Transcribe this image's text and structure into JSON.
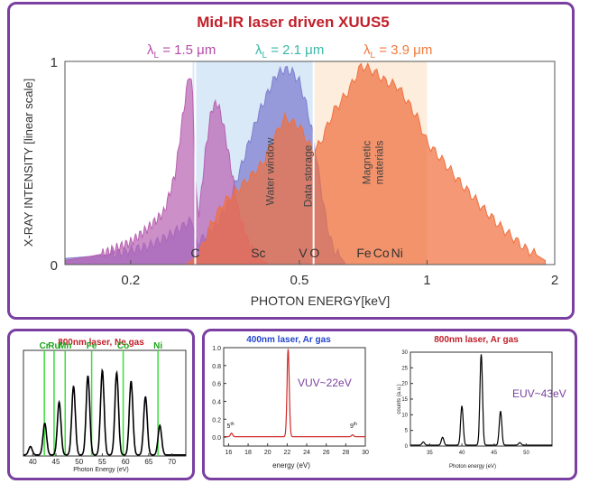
{
  "main": {
    "title": "Mid-IR laser driven XUUS5",
    "title_color": "#c0202a",
    "ylabel": "X-RAY INTENSITY [linear scale]",
    "xlabel": "PHOTON ENERGY[keV]",
    "legend": [
      {
        "prefix": "λ",
        "sub": "L",
        "text": " = 1.5 μm",
        "color": "#b44aa8"
      },
      {
        "prefix": "λ",
        "sub": "L",
        "text": " = 2.1 μm",
        "color": "#39b8a8"
      },
      {
        "prefix": "λ",
        "sub": "L",
        "text": " = 3.9 μm",
        "color": "#f07a3c"
      }
    ],
    "region_labels": [
      "Water window",
      "Data storage",
      "Magnetic materials"
    ],
    "region_label_lines": {
      "water": [
        "Water window"
      ],
      "data": [
        "Data storage"
      ],
      "magnetic": [
        "Magnetic",
        "materials"
      ]
    },
    "element_labels": [
      "C",
      "Sc",
      "V",
      "O",
      "Fe",
      "Co",
      "Ni"
    ]
  },
  "chart_data": [
    {
      "type": "area",
      "title": "Mid-IR laser driven XUUS5",
      "xlabel": "PHOTON ENERGY[keV]",
      "ylabel": "X-RAY INTENSITY [linear scale]",
      "xscale": "log",
      "xlim": [
        0.14,
        2
      ],
      "ylim": [
        0,
        1
      ],
      "x_ticks": [
        "0.2",
        "0.5",
        "1",
        "2"
      ],
      "x_tick_values": [
        0.2,
        0.5,
        1,
        2
      ],
      "y_ticks": [
        "0",
        "1"
      ],
      "y_tick_values": [
        0,
        1
      ],
      "shaded_regions": [
        {
          "label": "Water window",
          "x": [
            0.28,
            0.54
          ],
          "color": "#cfe3f5"
        },
        {
          "label": "Magnetic materials",
          "x": [
            0.54,
            1.0
          ],
          "color": "#fbe8d4"
        }
      ],
      "element_edges": [
        {
          "label": "C",
          "x": 0.284
        },
        {
          "label": "Sc",
          "x": 0.4
        },
        {
          "label": "V",
          "x": 0.51
        },
        {
          "label": "O",
          "x": 0.543
        },
        {
          "label": "Fe",
          "x": 0.71
        },
        {
          "label": "Co",
          "x": 0.78
        },
        {
          "label": "Ni",
          "x": 0.85
        }
      ],
      "series": [
        {
          "name": "λL = 2.1 μm",
          "color": "#7f7fd0",
          "x": [
            0.14,
            0.18,
            0.22,
            0.25,
            0.27,
            0.28,
            0.285,
            0.3,
            0.32,
            0.34,
            0.36,
            0.38,
            0.4,
            0.42,
            0.44,
            0.46,
            0.48,
            0.5,
            0.52,
            0.54,
            0.56,
            0.58,
            0.6,
            0.64
          ],
          "y": [
            0.03,
            0.05,
            0.09,
            0.15,
            0.2,
            0.22,
            0.1,
            0.14,
            0.2,
            0.3,
            0.45,
            0.6,
            0.74,
            0.84,
            0.93,
            0.96,
            0.95,
            0.9,
            0.78,
            0.62,
            0.4,
            0.2,
            0.08,
            0.01
          ]
        },
        {
          "name": "λL = 1.5 μm",
          "color": "#b860b0",
          "x": [
            0.14,
            0.17,
            0.2,
            0.22,
            0.24,
            0.255,
            0.265,
            0.275,
            0.28,
            0.285,
            0.29,
            0.3,
            0.31,
            0.32,
            0.33,
            0.34,
            0.36,
            0.38,
            0.4,
            0.42
          ],
          "y": [
            0.02,
            0.05,
            0.11,
            0.18,
            0.26,
            0.45,
            0.72,
            0.95,
            0.85,
            0.35,
            0.25,
            0.55,
            0.76,
            0.8,
            0.7,
            0.55,
            0.25,
            0.1,
            0.03,
            0.01
          ]
        },
        {
          "name": "λL = 3.9 μm",
          "color": "#f07040",
          "x": [
            0.27,
            0.29,
            0.31,
            0.33,
            0.35,
            0.37,
            0.39,
            0.41,
            0.43,
            0.46,
            0.5,
            0.54,
            0.56,
            0.6,
            0.65,
            0.7,
            0.75,
            0.8,
            0.85,
            0.9,
            0.95,
            1.0,
            1.1,
            1.2,
            1.35,
            1.5,
            1.7,
            1.9
          ],
          "y": [
            0.0,
            0.05,
            0.2,
            0.3,
            0.35,
            0.4,
            0.45,
            0.5,
            0.6,
            0.72,
            0.68,
            0.55,
            0.6,
            0.75,
            0.85,
            0.98,
            0.95,
            0.9,
            0.88,
            0.8,
            0.72,
            0.6,
            0.5,
            0.4,
            0.28,
            0.18,
            0.08,
            0.02
          ]
        }
      ]
    },
    {
      "type": "line",
      "title": "800nm laser, Ne gas",
      "xlabel": "Photon Energy (eV)",
      "xlim": [
        38,
        73
      ],
      "ylim": [
        0,
        1
      ],
      "x_ticks": [
        "40",
        "45",
        "50",
        "55",
        "60",
        "65",
        "70"
      ],
      "x_tick_values": [
        40,
        45,
        50,
        55,
        60,
        65,
        70
      ],
      "element_lines": [
        {
          "label": "Cr",
          "x": 42.5
        },
        {
          "label": "Ru",
          "x": 44.6
        },
        {
          "label": "Mn",
          "x": 47.0
        },
        {
          "label": "Fe",
          "x": 52.7
        },
        {
          "label": "Co",
          "x": 59.5
        },
        {
          "label": "Ni",
          "x": 67.0
        }
      ],
      "series": [
        {
          "name": "",
          "color": "#000000",
          "peak_x": [
            39.5,
            42.6,
            45.7,
            48.8,
            51.9,
            55.0,
            58.1,
            61.2,
            64.3,
            67.4
          ],
          "peak_y": [
            0.08,
            0.3,
            0.5,
            0.65,
            0.75,
            0.8,
            0.78,
            0.7,
            0.55,
            0.28
          ]
        }
      ]
    },
    {
      "type": "line",
      "title": "400nm laser, Ar gas",
      "xlabel": "energy (eV)",
      "annotation": "VUV~22eV",
      "xlim": [
        15.5,
        30
      ],
      "ylim": [
        -0.1,
        1.0
      ],
      "x_ticks": [
        "16",
        "18",
        "20",
        "22",
        "24",
        "26",
        "28",
        "30"
      ],
      "x_tick_values": [
        16,
        18,
        20,
        22,
        24,
        26,
        28,
        30
      ],
      "y_ticks": [
        "0.0",
        "0.2",
        "0.4",
        "0.6",
        "0.8",
        "1.0"
      ],
      "y_tick_values": [
        0.0,
        0.2,
        0.4,
        0.6,
        0.8,
        1.0
      ],
      "peak_labels": [
        {
          "base": "5",
          "sup": "th",
          "x": 16.2
        },
        {
          "base": "9",
          "sup": "th",
          "x": 28.8
        }
      ],
      "series": [
        {
          "name": "",
          "color": "#d02a2a",
          "peak_x": [
            16.3,
            22.1,
            28.7
          ],
          "peak_y": [
            0.04,
            0.98,
            0.02
          ]
        }
      ]
    },
    {
      "type": "line",
      "title": "800nm laser, Ar gas",
      "xlabel": "Photon energy (eV)",
      "ylabel": "counts (a.u.)",
      "annotation": "EUV~43eV",
      "xlim": [
        32,
        54
      ],
      "ylim": [
        0,
        30
      ],
      "x_ticks": [
        "35",
        "40",
        "45",
        "50"
      ],
      "x_tick_values": [
        35,
        40,
        45,
        50
      ],
      "y_ticks": [
        "0",
        "5",
        "10",
        "15",
        "20",
        "25",
        "30"
      ],
      "y_tick_values": [
        0,
        5,
        10,
        15,
        20,
        25,
        30
      ],
      "series": [
        {
          "name": "",
          "color": "#000000",
          "peak_x": [
            34.0,
            37.0,
            40.0,
            43.0,
            46.0,
            49.0
          ],
          "peak_y": [
            1.0,
            2.5,
            12.5,
            29.0,
            10.8,
            0.8
          ]
        }
      ]
    }
  ],
  "bl": {
    "title": "800nm laser, Ne gas",
    "title_color": "#c0202a",
    "xlabel": "Photon Energy (eV)"
  },
  "br1": {
    "title": "400nm laser, Ar gas",
    "title_color": "#2244cc",
    "xlabel": "energy (eV)",
    "annotation": "VUV~22eV",
    "annotation_color": "#7a3fa0"
  },
  "br2": {
    "title": "800nm laser, Ar gas",
    "title_color": "#c0202a",
    "xlabel": "Photon energy (eV)",
    "ylabel": "counts (a.u.)",
    "annotation": "EUV~43eV",
    "annotation_color": "#7a3fa0"
  }
}
